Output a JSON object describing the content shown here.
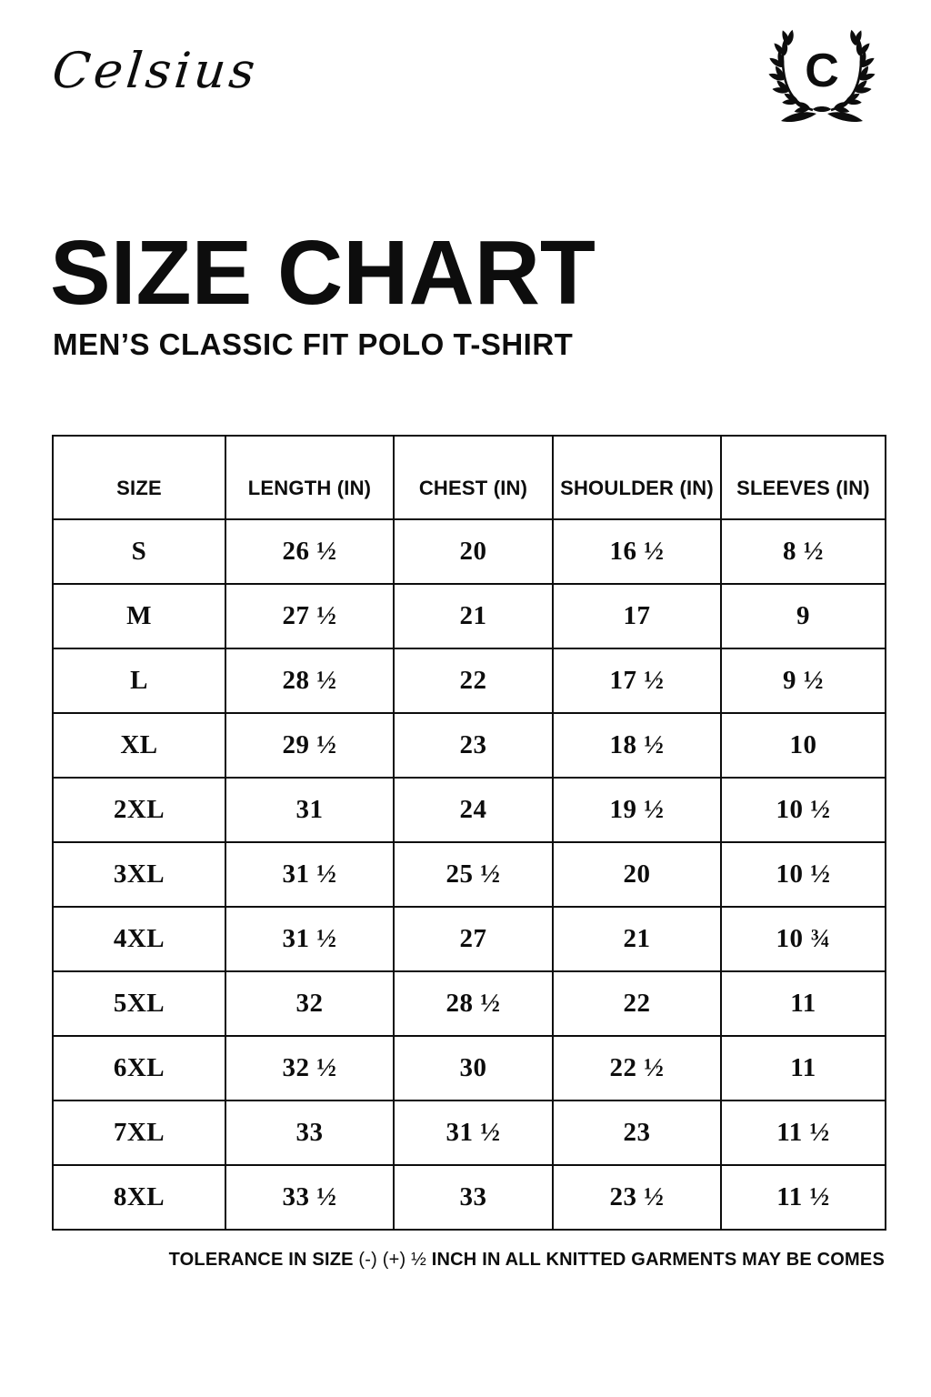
{
  "brand": {
    "script_name": "Celsius",
    "monogram": "C"
  },
  "title": "SIZE CHART",
  "subtitle": "MEN’S CLASSIC FIT POLO T-SHIRT",
  "table": {
    "columns": [
      "SIZE",
      "LENGTH (IN)",
      "CHEST (IN)",
      "SHOULDER (IN)",
      "SLEEVES (IN)"
    ],
    "rows": [
      [
        "S",
        "26 ½",
        "20",
        "16 ½",
        "8 ½"
      ],
      [
        "M",
        "27 ½",
        "21",
        "17",
        "9"
      ],
      [
        "L",
        "28 ½",
        "22",
        "17 ½",
        "9 ½"
      ],
      [
        "XL",
        "29 ½",
        "23",
        "18 ½",
        "10"
      ],
      [
        "2XL",
        "31",
        "24",
        "19 ½",
        "10 ½"
      ],
      [
        "3XL",
        "31 ½",
        "25 ½",
        "20",
        "10 ½"
      ],
      [
        "4XL",
        "31 ½",
        "27",
        "21",
        "10 ¾"
      ],
      [
        "5XL",
        "32",
        "28 ½",
        "22",
        "11"
      ],
      [
        "6XL",
        "32 ½",
        "30",
        "22 ½",
        "11"
      ],
      [
        "7XL",
        "33",
        "31 ½",
        "23",
        "11 ½"
      ],
      [
        "8XL",
        "33 ½",
        "33",
        "23 ½",
        "11 ½"
      ]
    ]
  },
  "footnote": {
    "segments": [
      {
        "text": "TOLERANCE IN SIZE ",
        "bold": true
      },
      {
        "text": "(-) (+) ½ ",
        "bold": false
      },
      {
        "text": "INCH IN ALL KNITTED GARMENTS MAY BE COMES",
        "bold": true
      }
    ]
  },
  "colors": {
    "ink": "#0d0d0d",
    "background": "#ffffff"
  }
}
